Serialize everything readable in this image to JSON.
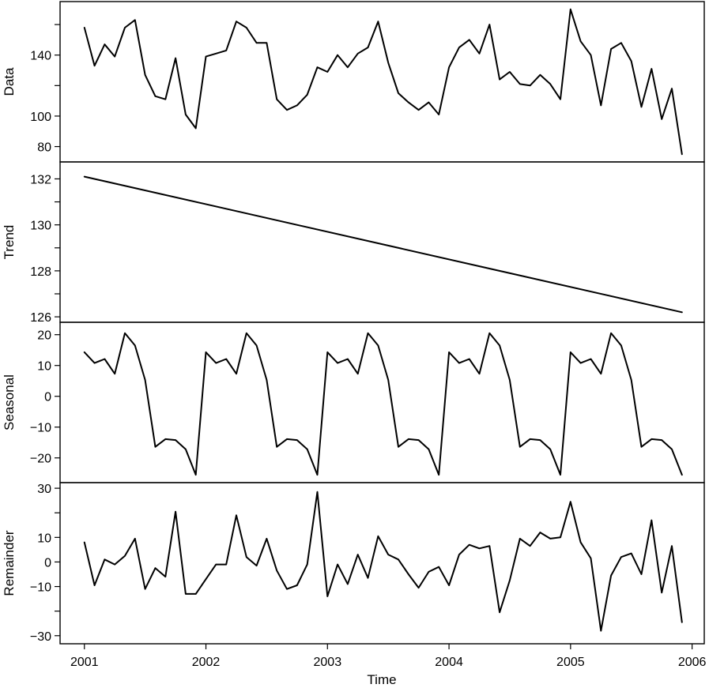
{
  "chart_data": [
    {
      "type": "line",
      "ylabel": "Data",
      "ylim": [
        72,
        173
      ],
      "yticks": [
        80,
        100,
        140
      ],
      "yticks_minor": [
        120,
        160
      ],
      "xlim": [
        2000.8,
        2006.1
      ],
      "x_start": 2001,
      "x_step": 0.08333,
      "values": [
        158,
        133,
        147,
        139,
        158,
        163,
        127,
        113,
        111,
        138,
        101,
        92,
        139,
        141,
        143,
        162,
        158,
        148,
        148,
        111,
        104,
        107,
        114,
        132,
        129,
        140,
        132,
        141,
        145,
        162,
        135,
        115,
        109,
        104,
        109,
        101,
        132,
        145,
        150,
        141,
        160,
        124,
        129,
        121,
        120,
        127,
        121,
        111,
        170,
        149,
        140,
        107,
        144,
        148,
        136,
        106,
        131,
        98,
        118,
        75
      ]
    },
    {
      "type": "line",
      "ylabel": "Trend",
      "ylim": [
        125.9,
        132.6
      ],
      "yticks": [
        126,
        128,
        130,
        132
      ],
      "yticks_minor": [
        127,
        129,
        131
      ],
      "xlim": [
        2000.8,
        2006.1
      ],
      "x_start": 2001,
      "x_step": 0.08333,
      "values": [
        132.1,
        126.2
      ]
    },
    {
      "type": "line",
      "ylabel": "Seasonal",
      "ylim": [
        -27,
        23
      ],
      "yticks": [
        -20,
        -10,
        0,
        10,
        20
      ],
      "yticks_minor": [],
      "xlim": [
        2000.8,
        2006.1
      ],
      "x_start": 2001,
      "x_step": 0.08333,
      "values": [
        14.3,
        10.8,
        12.1,
        7.3,
        20.5,
        16.5,
        5.3,
        -16.4,
        -13.9,
        -14.2,
        -17.2,
        -25.5,
        14.3,
        10.8,
        12.1,
        7.3,
        20.5,
        16.5,
        5.3,
        -16.4,
        -13.9,
        -14.2,
        -17.2,
        -25.5,
        14.3,
        10.8,
        12.1,
        7.3,
        20.5,
        16.5,
        5.3,
        -16.4,
        -13.9,
        -14.2,
        -17.2,
        -25.5,
        14.3,
        10.8,
        12.1,
        7.3,
        20.5,
        16.5,
        5.3,
        -16.4,
        -13.9,
        -14.2,
        -17.2,
        -25.5,
        14.3,
        10.8,
        12.1,
        7.3,
        20.5,
        16.5,
        5.3,
        -16.4,
        -13.9,
        -14.2,
        -17.2,
        -25.5
      ]
    },
    {
      "type": "line",
      "ylabel": "Remainder",
      "ylim": [
        -32,
        31
      ],
      "yticks": [
        -30,
        -10,
        0,
        10,
        30
      ],
      "yticks_minor": [
        -20,
        20
      ],
      "xlim": [
        2000.8,
        2006.1
      ],
      "x_start": 2001,
      "x_step": 0.08333,
      "values": [
        8,
        -9.5,
        1,
        -1,
        2.5,
        9.5,
        -11,
        -2.5,
        -6,
        20.5,
        -13,
        -13,
        -7,
        -1,
        -1,
        19,
        2,
        -1.5,
        9.5,
        -3.5,
        -11,
        -9.5,
        -1,
        28.5,
        -14,
        -1,
        -9,
        3,
        -6.5,
        10.5,
        3,
        1,
        -5,
        -10.5,
        -4,
        -2,
        -9.5,
        3,
        7,
        5.5,
        6.5,
        -20.5,
        -7.5,
        9.5,
        6.5,
        12,
        9.5,
        10,
        24.5,
        8,
        1.5,
        -28,
        -5.5,
        2,
        3.5,
        -5,
        17,
        -12.5,
        6.5,
        -24.5
      ]
    }
  ],
  "xaxis": {
    "label": "Time",
    "ticks": [
      "2001",
      "2002",
      "2003",
      "2004",
      "2005",
      "2006"
    ],
    "tick_values": [
      2001,
      2002,
      2003,
      2004,
      2005,
      2006
    ]
  }
}
